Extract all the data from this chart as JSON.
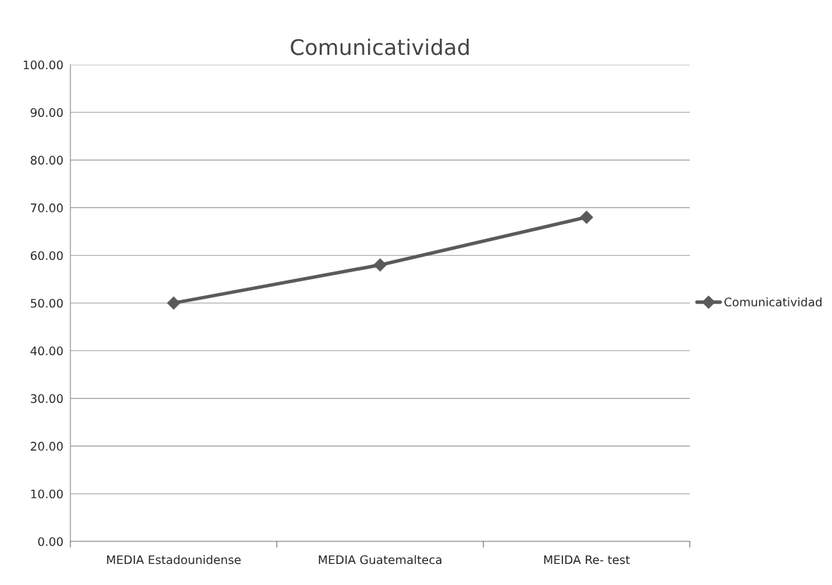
{
  "chart_data": {
    "type": "line",
    "title": "Comunicatividad",
    "categories": [
      "MEDIA Estadounidense",
      "MEDIA Guatemalteca",
      "MEIDA Re- test"
    ],
    "series": [
      {
        "name": "Comunicatividad",
        "color": "#5a5a5a",
        "values": [
          50,
          58,
          68
        ]
      }
    ],
    "ylim": [
      0,
      100
    ],
    "yticks": [
      {
        "value": 0,
        "label": "0.00"
      },
      {
        "value": 10,
        "label": "10.00"
      },
      {
        "value": 20,
        "label": "20.00"
      },
      {
        "value": 30,
        "label": "30.00"
      },
      {
        "value": 40,
        "label": "40.00"
      },
      {
        "value": 50,
        "label": "50.00"
      },
      {
        "value": 60,
        "label": "60.00"
      },
      {
        "value": 70,
        "label": "70.00"
      },
      {
        "value": 80,
        "label": "80.00"
      },
      {
        "value": 90,
        "label": "90.00"
      },
      {
        "value": 100,
        "label": "100.00"
      }
    ],
    "grid": "y",
    "legend": "right",
    "marker": "diamond",
    "line_style": "solid"
  }
}
